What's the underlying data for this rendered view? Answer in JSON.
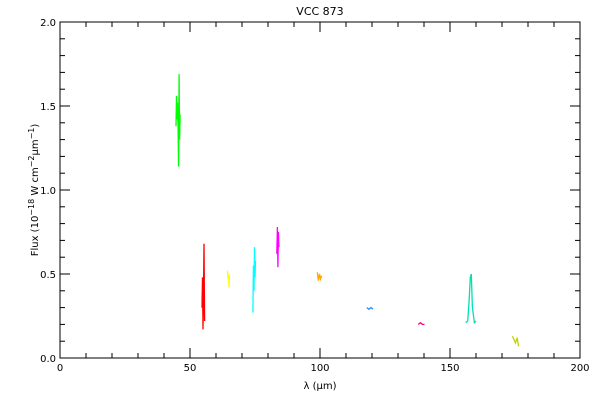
{
  "chart_data": {
    "type": "line",
    "title": "VCC 873",
    "xlabel": "λ (μm)",
    "ylabel": {
      "prefix": "Flux (10",
      "exp1": "−18",
      "mid": " W cm",
      "exp2": "−2",
      "mu": "μm",
      "exp3": "−1",
      "suffix": ")"
    },
    "xlim": [
      0,
      200
    ],
    "ylim": [
      0.0,
      2.0
    ],
    "xticks": [
      0,
      50,
      100,
      150,
      200
    ],
    "xtick_labels": [
      "0",
      "50",
      "100",
      "150",
      "200"
    ],
    "yticks": [
      0.0,
      0.5,
      1.0,
      1.5,
      2.0
    ],
    "ytick_labels": [
      "0.0",
      "0.5",
      "1.0",
      "1.5",
      "2.0"
    ],
    "grid": false,
    "series": [
      {
        "color": "#00ff00",
        "x": [
          44.6,
          44.8,
          45.0,
          45.2,
          45.4,
          45.6,
          45.8,
          46.0,
          46.2
        ],
        "y": [
          1.38,
          1.56,
          1.42,
          1.52,
          1.4,
          1.14,
          1.69,
          1.3,
          1.45
        ]
      },
      {
        "color": "#ff0000",
        "x": [
          54.6,
          54.8,
          55.0,
          55.2,
          55.4,
          55.6
        ],
        "y": [
          0.3,
          0.48,
          0.17,
          0.38,
          0.68,
          0.22
        ]
      },
      {
        "color": "#ffff00",
        "x": [
          64.4,
          64.6,
          64.8,
          65.0,
          65.2
        ],
        "y": [
          0.52,
          0.47,
          0.5,
          0.42,
          0.49
        ]
      },
      {
        "color": "#00ffff",
        "x": [
          74.2,
          74.4,
          74.6,
          74.8,
          75.0,
          75.2
        ],
        "y": [
          0.27,
          0.55,
          0.4,
          0.66,
          0.48,
          0.58
        ]
      },
      {
        "color": "#ff00ff",
        "x": [
          83.4,
          83.6,
          83.8,
          84.0,
          84.2
        ],
        "y": [
          0.62,
          0.78,
          0.54,
          0.75,
          0.66
        ]
      },
      {
        "color": "#ffa500",
        "x": [
          99.0,
          99.4,
          99.8,
          100.2,
          100.6
        ],
        "y": [
          0.51,
          0.46,
          0.5,
          0.47,
          0.49
        ]
      },
      {
        "color": "#1e90ff",
        "x": [
          118.0,
          118.8,
          119.6,
          120.4
        ],
        "y": [
          0.3,
          0.29,
          0.3,
          0.29
        ]
      },
      {
        "color": "#ff0080",
        "x": [
          137.8,
          138.6,
          139.4,
          140.2
        ],
        "y": [
          0.2,
          0.21,
          0.2,
          0.2
        ]
      },
      {
        "color": "#00e0b0",
        "x": [
          156.0,
          156.8,
          157.4,
          157.8,
          158.2,
          158.6,
          159.4,
          160.0
        ],
        "y": [
          0.21,
          0.22,
          0.35,
          0.48,
          0.5,
          0.3,
          0.21,
          0.22
        ]
      },
      {
        "color": "#c0d000",
        "x": [
          174.0,
          174.6,
          175.2,
          175.8,
          176.4
        ],
        "y": [
          0.13,
          0.11,
          0.09,
          0.12,
          0.07
        ]
      }
    ]
  }
}
